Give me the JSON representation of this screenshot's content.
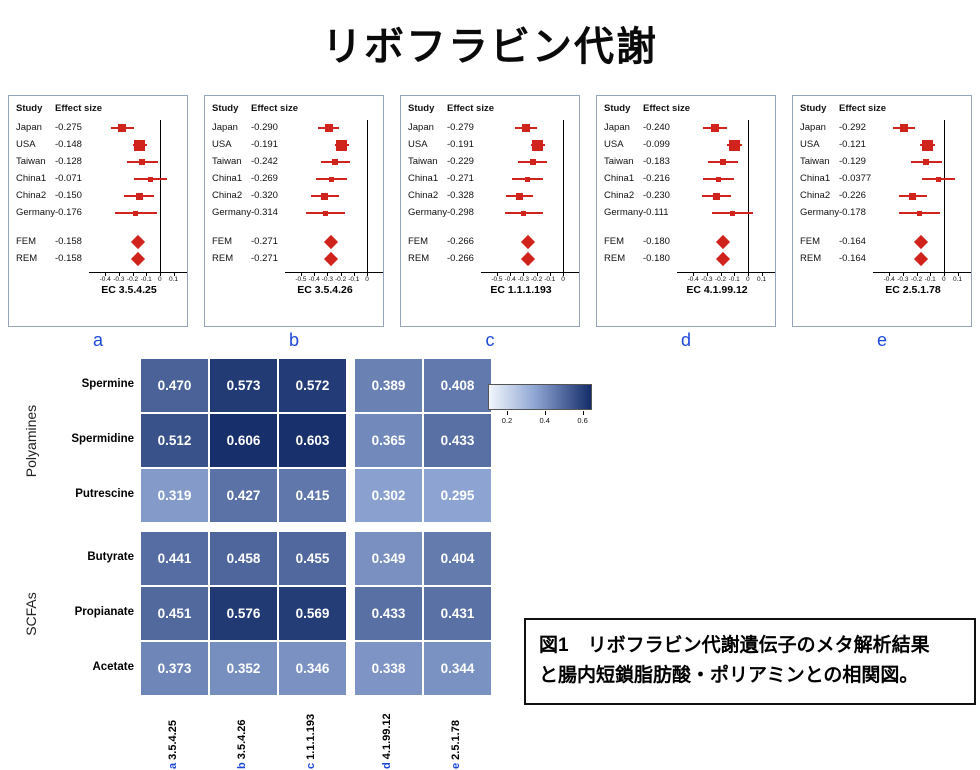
{
  "title": "リボフラビン代謝",
  "caption": {
    "line1": "図1　リボフラビン代謝遺伝子のメタ解析結果",
    "line2": "と腸内短鎖脂肪酸・ポリアミンとの相関図。"
  },
  "colors": {
    "forest_red": "#cf231c",
    "label_blue": "#1d49d8",
    "heat_low": "#8fa6d4",
    "heat_high": "#152d69",
    "legend_start": "#f2f6fb"
  },
  "chart_data": [
    {
      "type": "forest",
      "panel": "a",
      "ec_label": "EC 3.5.4.25",
      "headers": [
        "Study",
        "Effect size"
      ],
      "axis_range": [
        -0.46,
        0.14
      ],
      "axis_ticks": [
        "-0.4",
        "-0.3",
        "-0.2",
        "-0.1",
        "0",
        "0.1"
      ],
      "studies": [
        {
          "name": "Japan",
          "label": "-0.275",
          "est": -0.275,
          "lo": -0.36,
          "hi": -0.19,
          "w": 8
        },
        {
          "name": "USA",
          "label": "-0.148",
          "est": -0.148,
          "lo": -0.2,
          "hi": -0.095,
          "w": 11
        },
        {
          "name": "Taiwan",
          "label": "-0.128",
          "est": -0.128,
          "lo": -0.24,
          "hi": -0.015,
          "w": 6
        },
        {
          "name": "China1",
          "label": "-0.071",
          "est": -0.071,
          "lo": -0.19,
          "hi": 0.05,
          "w": 5
        },
        {
          "name": "China2",
          "label": "-0.150",
          "est": -0.15,
          "lo": -0.26,
          "hi": -0.04,
          "w": 7
        },
        {
          "name": "Germany",
          "label": "-0.176",
          "est": -0.176,
          "lo": -0.33,
          "hi": -0.02,
          "w": 5
        }
      ],
      "summaries": [
        {
          "name": "FEM",
          "label": "-0.158",
          "est": -0.158
        },
        {
          "name": "REM",
          "label": "-0.158",
          "est": -0.158
        }
      ]
    },
    {
      "type": "forest",
      "panel": "b",
      "ec_label": "EC 3.5.4.26",
      "headers": [
        "Study",
        "Effect size"
      ],
      "axis_range": [
        -0.56,
        0.06
      ],
      "axis_ticks": [
        "-0.5",
        "-0.4",
        "-0.3",
        "-0.2",
        "-0.1",
        "0"
      ],
      "studies": [
        {
          "name": "Japan",
          "label": "-0.290",
          "est": -0.29,
          "lo": -0.37,
          "hi": -0.21,
          "w": 8
        },
        {
          "name": "USA",
          "label": "-0.191",
          "est": -0.191,
          "lo": -0.245,
          "hi": -0.14,
          "w": 11
        },
        {
          "name": "Taiwan",
          "label": "-0.242",
          "est": -0.242,
          "lo": -0.35,
          "hi": -0.13,
          "w": 6
        },
        {
          "name": "China1",
          "label": "-0.269",
          "est": -0.269,
          "lo": -0.385,
          "hi": -0.155,
          "w": 5
        },
        {
          "name": "China2",
          "label": "-0.320",
          "est": -0.32,
          "lo": -0.425,
          "hi": -0.215,
          "w": 7
        },
        {
          "name": "Germany",
          "label": "-0.314",
          "est": -0.314,
          "lo": -0.46,
          "hi": -0.17,
          "w": 5
        }
      ],
      "summaries": [
        {
          "name": "FEM",
          "label": "-0.271",
          "est": -0.271
        },
        {
          "name": "REM",
          "label": "-0.271",
          "est": -0.271
        }
      ]
    },
    {
      "type": "forest",
      "panel": "c",
      "ec_label": "EC 1.1.1.193",
      "headers": [
        "Study",
        "Effect size"
      ],
      "axis_range": [
        -0.56,
        0.06
      ],
      "axis_ticks": [
        "-0.5",
        "-0.4",
        "-0.3",
        "-0.2",
        "-0.1",
        "0"
      ],
      "studies": [
        {
          "name": "Japan",
          "label": "-0.279",
          "est": -0.279,
          "lo": -0.36,
          "hi": -0.2,
          "w": 8
        },
        {
          "name": "USA",
          "label": "-0.191",
          "est": -0.191,
          "lo": -0.245,
          "hi": -0.14,
          "w": 11
        },
        {
          "name": "Taiwan",
          "label": "-0.229",
          "est": -0.229,
          "lo": -0.34,
          "hi": -0.12,
          "w": 6
        },
        {
          "name": "China1",
          "label": "-0.271",
          "est": -0.271,
          "lo": -0.385,
          "hi": -0.155,
          "w": 5
        },
        {
          "name": "China2",
          "label": "-0.328",
          "est": -0.328,
          "lo": -0.43,
          "hi": -0.225,
          "w": 7
        },
        {
          "name": "Germany",
          "label": "-0.298",
          "est": -0.298,
          "lo": -0.44,
          "hi": -0.155,
          "w": 5
        }
      ],
      "summaries": [
        {
          "name": "FEM",
          "label": "-0.266",
          "est": -0.266
        },
        {
          "name": "REM",
          "label": "-0.266",
          "est": -0.266
        }
      ]
    },
    {
      "type": "forest",
      "panel": "d",
      "ec_label": "EC 4.1.99.12",
      "headers": [
        "Study",
        "Effect size"
      ],
      "axis_range": [
        -0.46,
        0.14
      ],
      "axis_ticks": [
        "-0.4",
        "-0.3",
        "-0.2",
        "-0.1",
        "0",
        "0.1"
      ],
      "studies": [
        {
          "name": "Japan",
          "label": "-0.240",
          "est": -0.24,
          "lo": -0.325,
          "hi": -0.155,
          "w": 8
        },
        {
          "name": "USA",
          "label": "-0.099",
          "est": -0.099,
          "lo": -0.15,
          "hi": -0.045,
          "w": 11
        },
        {
          "name": "Taiwan",
          "label": "-0.183",
          "est": -0.183,
          "lo": -0.29,
          "hi": -0.075,
          "w": 6
        },
        {
          "name": "China1",
          "label": "-0.216",
          "est": -0.216,
          "lo": -0.33,
          "hi": -0.1,
          "w": 5
        },
        {
          "name": "China2",
          "label": "-0.230",
          "est": -0.23,
          "lo": -0.335,
          "hi": -0.125,
          "w": 7
        },
        {
          "name": "Germany",
          "label": "-0.111",
          "est": -0.111,
          "lo": -0.26,
          "hi": 0.04,
          "w": 5
        }
      ],
      "summaries": [
        {
          "name": "FEM",
          "label": "-0.180",
          "est": -0.18
        },
        {
          "name": "REM",
          "label": "-0.180",
          "est": -0.18
        }
      ]
    },
    {
      "type": "forest",
      "panel": "e",
      "ec_label": "EC 2.5.1.78",
      "headers": [
        "Study",
        "Effect size"
      ],
      "axis_range": [
        -0.46,
        0.14
      ],
      "axis_ticks": [
        "-0.4",
        "-0.3",
        "-0.2",
        "-0.1",
        "0",
        "0.1"
      ],
      "studies": [
        {
          "name": "Japan",
          "label": "-0.292",
          "est": -0.292,
          "lo": -0.37,
          "hi": -0.21,
          "w": 8
        },
        {
          "name": "USA",
          "label": "-0.121",
          "est": -0.121,
          "lo": -0.175,
          "hi": -0.065,
          "w": 11
        },
        {
          "name": "Taiwan",
          "label": "-0.129",
          "est": -0.129,
          "lo": -0.24,
          "hi": -0.015,
          "w": 6
        },
        {
          "name": "China1",
          "label": "-0.0377",
          "est": -0.0377,
          "lo": -0.16,
          "hi": 0.085,
          "w": 5
        },
        {
          "name": "China2",
          "label": "-0.226",
          "est": -0.226,
          "lo": -0.33,
          "hi": -0.12,
          "w": 7
        },
        {
          "name": "Germany",
          "label": "-0.178",
          "est": -0.178,
          "lo": -0.33,
          "hi": -0.025,
          "w": 5
        }
      ],
      "summaries": [
        {
          "name": "FEM",
          "label": "-0.164",
          "est": -0.164
        },
        {
          "name": "REM",
          "label": "-0.164",
          "est": -0.164
        }
      ]
    },
    {
      "type": "heatmap",
      "row_groups": [
        {
          "name": "Polyamines",
          "rows": [
            "Spermine",
            "Spermidine",
            "Putrescine"
          ]
        },
        {
          "name": "SCFAs",
          "rows": [
            "Butyrate",
            "Propianate",
            "Acetate"
          ]
        }
      ],
      "columns": [
        {
          "letter": "a",
          "ec": "3.5.4.25"
        },
        {
          "letter": "b",
          "ec": "3.5.4.26"
        },
        {
          "letter": "c",
          "ec": "1.1.1.193"
        },
        {
          "letter": "d",
          "ec": "4.1.99.12"
        },
        {
          "letter": "e",
          "ec": "2.5.1.78"
        }
      ],
      "values": [
        [
          0.47,
          0.573,
          0.572,
          0.389,
          0.408
        ],
        [
          0.512,
          0.606,
          0.603,
          0.365,
          0.433
        ],
        [
          0.319,
          0.427,
          0.415,
          0.302,
          0.295
        ],
        [
          0.441,
          0.458,
          0.455,
          0.349,
          0.404
        ],
        [
          0.451,
          0.576,
          0.569,
          0.433,
          0.431
        ],
        [
          0.373,
          0.352,
          0.346,
          0.338,
          0.344
        ]
      ],
      "color_domain": [
        0.29,
        0.61
      ],
      "legend": {
        "tick_labels": [
          "0.2",
          "0.4",
          "0.6"
        ],
        "range": [
          0.1,
          0.65
        ]
      }
    }
  ]
}
